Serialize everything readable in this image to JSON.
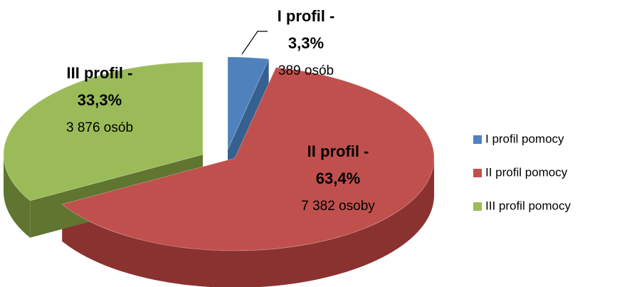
{
  "chart_data": {
    "type": "pie3d",
    "categories": [
      "I profil pomocy",
      "II profil pomocy",
      "III profil pomocy"
    ],
    "slice_titles": [
      "I profil -",
      "II profil -",
      "III profil -"
    ],
    "values": [
      3.3,
      63.4,
      33.3
    ],
    "value_labels": [
      "3,3%",
      "63,4%",
      "33,3%"
    ],
    "count_labels": [
      "389 osób",
      "7 382 osoby",
      "3 876 osób"
    ],
    "colors": [
      "#4f81bd",
      "#c0504d",
      "#9bbb59"
    ],
    "side_colors": [
      "#36608f",
      "#8a3230",
      "#5f7530"
    ],
    "legend": "right"
  }
}
